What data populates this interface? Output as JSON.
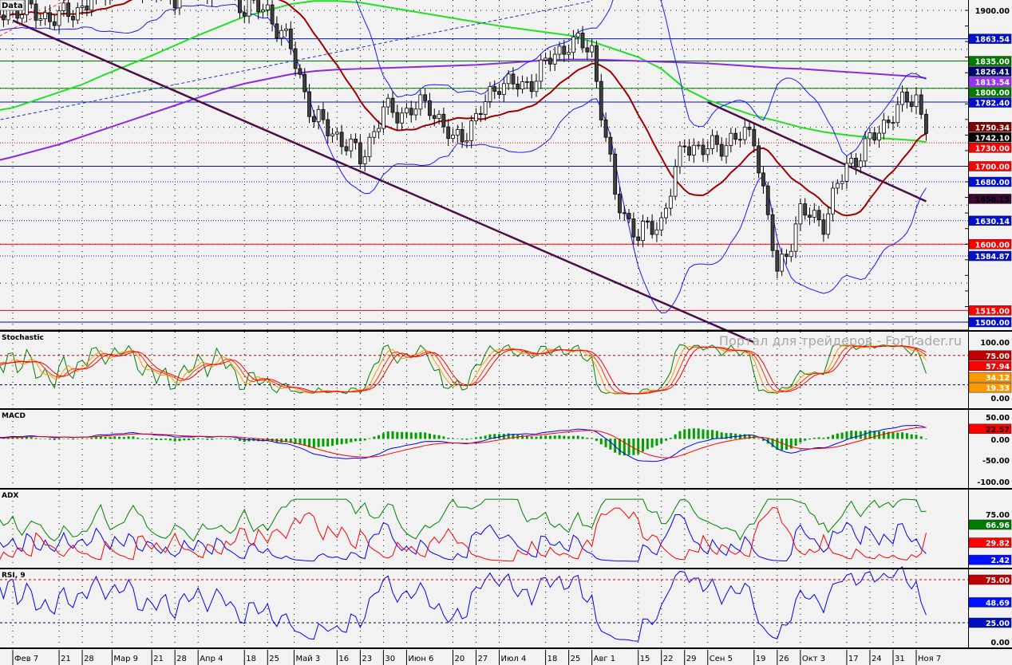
{
  "chart_data": {
    "type": "candlestick",
    "series_label": "Data",
    "watermark": "Портал для трейдеров - ForTrader.ru",
    "weeks": [
      "01-31",
      "02-07",
      "02-14",
      "02-21",
      "02-28",
      "03-07",
      "03-14",
      "03-21",
      "03-28",
      "04-04",
      "04-11",
      "04-18",
      "04-25",
      "05-02",
      "05-09",
      "05-16",
      "05-23",
      "05-30",
      "06-06",
      "06-13",
      "06-20",
      "06-27",
      "07-04",
      "07-11",
      "07-18",
      "07-25",
      "08-01",
      "08-08",
      "08-15",
      "08-22",
      "08-29",
      "09-05",
      "09-12",
      "09-19",
      "09-26",
      "10-03",
      "10-10",
      "10-17",
      "10-24",
      "10-31",
      "11-07",
      "11-10"
    ],
    "weekly_close": [
      1880,
      1905,
      1895,
      1890,
      1905,
      1930,
      1940,
      1925,
      1920,
      1930,
      1935,
      1905,
      1900,
      1850,
      1760,
      1740,
      1710,
      1770,
      1770,
      1780,
      1730,
      1760,
      1810,
      1800,
      1830,
      1860,
      1850,
      1660,
      1610,
      1630,
      1730,
      1720,
      1735,
      1740,
      1560,
      1640,
      1630,
      1700,
      1730,
      1770,
      1790,
      1742.1
    ],
    "ma_green": [
      1770,
      1775,
      1785,
      1795,
      1805,
      1818,
      1830,
      1842,
      1855,
      1868,
      1880,
      1892,
      1900,
      1908,
      1912,
      1912,
      1910,
      1905,
      1900,
      1895,
      1890,
      1885,
      1880,
      1876,
      1872,
      1868,
      1860,
      1850,
      1840,
      1825,
      1800,
      1785,
      1775,
      1765,
      1758,
      1750,
      1744,
      1740,
      1737,
      1735,
      1733,
      1731
    ],
    "ma_purple": [
      1705,
      1712,
      1720,
      1728,
      1738,
      1748,
      1758,
      1768,
      1778,
      1788,
      1798,
      1806,
      1812,
      1818,
      1822,
      1824,
      1825,
      1826,
      1827,
      1828,
      1829,
      1830,
      1832,
      1834,
      1836,
      1837,
      1837,
      1836,
      1835,
      1834,
      1833,
      1832,
      1830,
      1828,
      1826,
      1825,
      1823,
      1821,
      1819,
      1817,
      1815,
      1813
    ],
    "trend_lines": [
      {
        "from": [
          "02-07",
          1887
        ],
        "to": [
          "09-19",
          1474
        ],
        "color": "#4b0f45",
        "style": "solid"
      },
      {
        "from": [
          "09-05",
          1782
        ],
        "to": [
          "11-10",
          1655
        ],
        "color": "#4b0f45",
        "style": "solid"
      },
      {
        "from": [
          "01-31",
          1757
        ],
        "to": [
          "08-01",
          1912
        ],
        "color": "#2030d0",
        "style": "dashed"
      },
      {
        "from": [
          "01-31",
          1860
        ],
        "to": [
          "02-28",
          1925
        ],
        "color": "#ff2020",
        "style": "dashed"
      }
    ],
    "levels": [
      {
        "value": 1863.54,
        "color": "#0010c0",
        "style": "solid"
      },
      {
        "value": 1835.0,
        "color": "#007000",
        "style": "solid"
      },
      {
        "value": 1800.0,
        "color": "#007000",
        "style": "solid"
      },
      {
        "value": 1782.4,
        "color": "#0010c0",
        "style": "solid"
      },
      {
        "value": 1730.0,
        "color": "#ff0000",
        "style": "dotted"
      },
      {
        "value": 1700.0,
        "color": "#101080",
        "style": "solid"
      },
      {
        "value": 1680.0,
        "color": "#0010c0",
        "style": "dotted"
      },
      {
        "value": 1630.14,
        "color": "#0010c0",
        "style": "dotted"
      },
      {
        "value": 1600.0,
        "color": "#ff0000",
        "style": "solid"
      },
      {
        "value": 1584.87,
        "color": "#0010c0",
        "style": "dotted"
      },
      {
        "value": 1515.0,
        "color": "#ff0000",
        "style": "solid"
      },
      {
        "value": 1500.0,
        "color": "#0010c0",
        "style": "solid"
      }
    ],
    "price_axis": {
      "ticks": [
        "1900.00"
      ],
      "range": [
        1500,
        1900
      ]
    },
    "price_markers": [
      {
        "label": "1863.54",
        "value": 1863.54,
        "bg": "#0010d0",
        "fg": "#ffffff"
      },
      {
        "label": "1835.00",
        "value": 1835,
        "bg": "#007a00",
        "fg": "#ffffff"
      },
      {
        "label": "1826.41",
        "value": 1826.41,
        "bg": "#000070",
        "fg": "#ffffff"
      },
      {
        "label": "1813.54",
        "value": 1813.54,
        "bg": "#9a30ff",
        "fg": "#ffffff"
      },
      {
        "label": "1800.00",
        "value": 1800,
        "bg": "#007a00",
        "fg": "#ffffff"
      },
      {
        "label": "1782.40",
        "value": 1782.4,
        "bg": "#0010d0",
        "fg": "#ffffff"
      },
      {
        "label": "1750.34",
        "value": 1750.34,
        "bg": "#800000",
        "fg": "#ffffff"
      },
      {
        "label": "1742.10",
        "value": 1742.1,
        "bg": "#000000",
        "fg": "#ffffff"
      },
      {
        "label": "1730.00",
        "value": 1730,
        "bg": "#ff0000",
        "fg": "#ffffff"
      },
      {
        "label": "1700.00",
        "value": 1700,
        "bg": "#ff0000",
        "fg": "#ffffff"
      },
      {
        "label": "1680.00",
        "value": 1680,
        "bg": "#0010d0",
        "fg": "#ffffff"
      },
      {
        "label": "1658.15",
        "value": 1658.15,
        "bg": "#3a0a35",
        "fg": "#000000"
      },
      {
        "label": "1630.14",
        "value": 1630.14,
        "bg": "#0010d0",
        "fg": "#ffffff"
      },
      {
        "label": "1600.00",
        "value": 1600,
        "bg": "#ff0000",
        "fg": "#ffffff"
      },
      {
        "label": "1584.87",
        "value": 1584.87,
        "bg": "#0010d0",
        "fg": "#ffffff"
      },
      {
        "label": "1515.00",
        "value": 1515,
        "bg": "#ff0000",
        "fg": "#ffffff"
      },
      {
        "label": "1500.00",
        "value": 1500,
        "bg": "#0010d0",
        "fg": "#ffffff"
      }
    ],
    "panels": [
      {
        "name": "Stochastic",
        "ticks": [
          "100.00",
          "0.00"
        ],
        "tick_values": [
          100,
          0
        ],
        "levels": [
          75,
          20
        ],
        "markers": [
          {
            "label": "75.00",
            "value": 75,
            "bg": "#c00000",
            "fg": "#fff"
          },
          {
            "label": "57.94",
            "value": 57.94,
            "bg": "#ff0000",
            "fg": "#fff"
          },
          {
            "label": "34.12",
            "value": 34.12,
            "bg": "#ff9900",
            "fg": "#fff"
          },
          {
            "label": "19.33",
            "value": 19.33,
            "bg": "#ff9900",
            "fg": "#fff"
          }
        ]
      },
      {
        "name": "MACD",
        "ticks": [
          "50.00",
          "0.00",
          "-50.00",
          "-100.00"
        ],
        "tick_values": [
          50,
          0,
          -50,
          -100
        ],
        "levels": [],
        "markers": [
          {
            "label": "22.57",
            "value": 22.57,
            "bg": "#ff0000",
            "fg": "#000"
          }
        ]
      },
      {
        "name": "ADX",
        "ticks": [
          "75.00"
        ],
        "tick_values": [
          75
        ],
        "levels": [],
        "markers": [
          {
            "label": "66.96",
            "value": 66.96,
            "bg": "#007a00",
            "fg": "#fff"
          },
          {
            "label": "29.82",
            "value": 29.82,
            "bg": "#ff0000",
            "fg": "#fff"
          },
          {
            "label": "2.42",
            "value": 2.42,
            "bg": "#0010ff",
            "fg": "#fff"
          }
        ]
      },
      {
        "name": "RSI, 9",
        "ticks": [
          "0.00"
        ],
        "tick_values": [
          0
        ],
        "levels": [
          75,
          25
        ],
        "markers": [
          {
            "label": "75.00",
            "value": 75,
            "bg": "#c00000",
            "fg": "#fff"
          },
          {
            "label": "48.69",
            "value": 48.69,
            "bg": "#0010ff",
            "fg": "#fff"
          },
          {
            "label": "25.00",
            "value": 25,
            "bg": "#0010c0",
            "fg": "#fff"
          }
        ]
      }
    ],
    "time_ticks": [
      {
        "label": "Фев 7",
        "date": "02-07"
      },
      {
        "label": "21",
        "date": "02-21"
      },
      {
        "label": "28",
        "date": "02-28"
      },
      {
        "label": "Мар 9",
        "date": "03-09"
      },
      {
        "label": "21",
        "date": "03-21"
      },
      {
        "label": "28",
        "date": "03-28"
      },
      {
        "label": "Апр 4",
        "date": "04-04"
      },
      {
        "label": "18",
        "date": "04-18"
      },
      {
        "label": "25",
        "date": "04-25"
      },
      {
        "label": "Май 3",
        "date": "05-03"
      },
      {
        "label": "16",
        "date": "05-16"
      },
      {
        "label": "23",
        "date": "05-23"
      },
      {
        "label": "30",
        "date": "05-30"
      },
      {
        "label": "Июн 6",
        "date": "06-06"
      },
      {
        "label": "20",
        "date": "06-20"
      },
      {
        "label": "27",
        "date": "06-27"
      },
      {
        "label": "Июл 4",
        "date": "07-04"
      },
      {
        "label": "18",
        "date": "07-18"
      },
      {
        "label": "25",
        "date": "07-25"
      },
      {
        "label": "Авг 1",
        "date": "08-01"
      },
      {
        "label": "15",
        "date": "08-15"
      },
      {
        "label": "22",
        "date": "08-22"
      },
      {
        "label": "29",
        "date": "08-29"
      },
      {
        "label": "Сен 5",
        "date": "09-05"
      },
      {
        "label": "19",
        "date": "09-19"
      },
      {
        "label": "26",
        "date": "09-26"
      },
      {
        "label": "Окт 3",
        "date": "10-03"
      },
      {
        "label": "17",
        "date": "10-17"
      },
      {
        "label": "24",
        "date": "10-24"
      },
      {
        "label": "31",
        "date": "10-31"
      },
      {
        "label": "Ноя 7",
        "date": "11-07"
      }
    ],
    "grid": true
  }
}
